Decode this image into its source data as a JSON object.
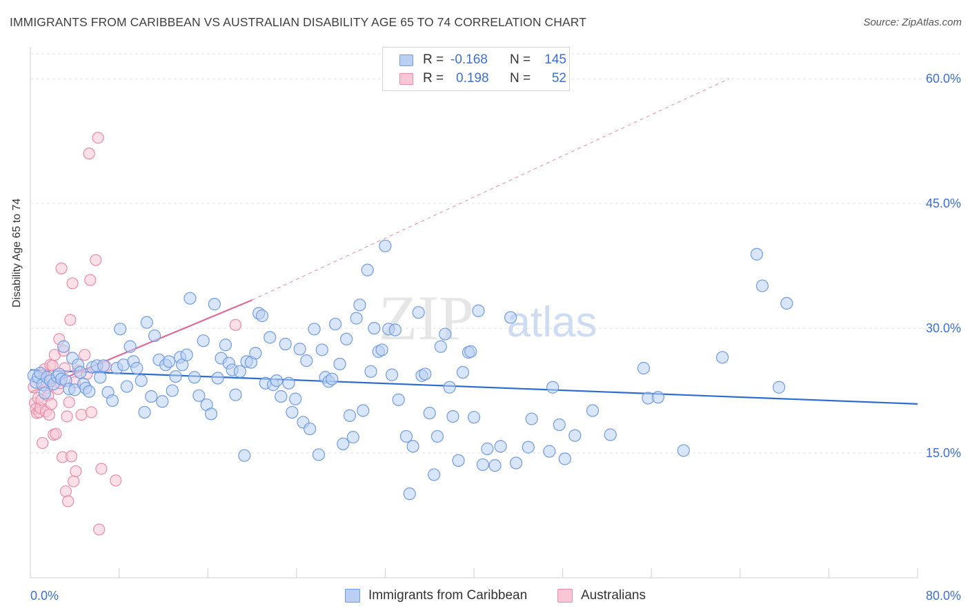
{
  "title": "IMMIGRANTS FROM CARIBBEAN VS AUSTRALIAN DISABILITY AGE 65 TO 74 CORRELATION CHART",
  "source": "Source: ZipAtlas.com",
  "watermark": {
    "zip": "ZIP",
    "atlas": "atlas"
  },
  "colors": {
    "blue_fill": "#b9cff4",
    "blue_stroke": "#6f9be0",
    "blue_line": "#2a6ccf",
    "pink_fill": "#f8c6d5",
    "pink_stroke": "#ea8aa9",
    "pink_line": "#e0699a",
    "axis_text": "#3a6fd8",
    "grid": "#e2e2e2"
  },
  "legend": {
    "rows": [
      {
        "r_label": "R =",
        "r_value": "-0.168",
        "n_label": "N =",
        "n_value": "145"
      },
      {
        "r_label": "R =",
        "r_value": "0.198",
        "n_label": "N =",
        "n_value": "52"
      }
    ]
  },
  "bottom_legend": {
    "series1": "Immigrants from Caribbean",
    "series2": "Australians"
  },
  "chart_data": {
    "type": "scatter",
    "title": "IMMIGRANTS FROM CARIBBEAN VS AUSTRALIAN DISABILITY AGE 65 TO 74 CORRELATION CHART",
    "xlabel": "",
    "ylabel": "Disability Age 65 to 74",
    "xlim": [
      0,
      80
    ],
    "ylim": [
      0,
      63
    ],
    "x_tick_labels": [
      "0.0%",
      "80.0%"
    ],
    "y_ticks": [
      15,
      30,
      45,
      60
    ],
    "y_tick_labels": [
      "15.0%",
      "30.0%",
      "45.0%",
      "60.0%"
    ],
    "grid": true,
    "legend_position": "top-center",
    "series": [
      {
        "name": "Immigrants from Caribbean",
        "color": "#6f9be0",
        "trend": {
          "x": [
            0,
            80
          ],
          "y": [
            25.0,
            20.9
          ],
          "style": "solid"
        },
        "points": [
          [
            0.3,
            24.3
          ],
          [
            0.5,
            23.5
          ],
          [
            0.7,
            24.1
          ],
          [
            0.9,
            24.6
          ],
          [
            1.1,
            23.2
          ],
          [
            1.3,
            22.2
          ],
          [
            1.5,
            24.1
          ],
          [
            1.8,
            23.7
          ],
          [
            2.1,
            23.3
          ],
          [
            2.4,
            24.2
          ],
          [
            2.6,
            24.5
          ],
          [
            2.8,
            23.9
          ],
          [
            3.0,
            27.8
          ],
          [
            3.2,
            23.7
          ],
          [
            3.5,
            22.7
          ],
          [
            3.8,
            26.4
          ],
          [
            4.0,
            22.6
          ],
          [
            4.3,
            25.6
          ],
          [
            4.5,
            24.7
          ],
          [
            4.8,
            23.3
          ],
          [
            5.0,
            22.8
          ],
          [
            5.3,
            22.4
          ],
          [
            5.6,
            25.3
          ],
          [
            6.0,
            25.5
          ],
          [
            6.3,
            24.1
          ],
          [
            6.6,
            25.5
          ],
          [
            7.0,
            22.3
          ],
          [
            7.4,
            21.3
          ],
          [
            7.8,
            25.2
          ],
          [
            8.1,
            29.9
          ],
          [
            8.4,
            25.6
          ],
          [
            8.7,
            23.0
          ],
          [
            9.0,
            27.8
          ],
          [
            9.3,
            26.0
          ],
          [
            9.6,
            25.2
          ],
          [
            10.0,
            23.7
          ],
          [
            10.3,
            19.9
          ],
          [
            10.5,
            30.7
          ],
          [
            10.9,
            21.8
          ],
          [
            11.2,
            29.1
          ],
          [
            11.6,
            26.2
          ],
          [
            11.9,
            21.2
          ],
          [
            12.2,
            25.6
          ],
          [
            12.5,
            26.0
          ],
          [
            12.8,
            22.5
          ],
          [
            13.1,
            24.2
          ],
          [
            13.5,
            26.5
          ],
          [
            13.7,
            25.6
          ],
          [
            14.1,
            26.8
          ],
          [
            14.4,
            33.6
          ],
          [
            14.8,
            24.1
          ],
          [
            15.2,
            21.9
          ],
          [
            15.6,
            28.5
          ],
          [
            15.9,
            20.8
          ],
          [
            16.3,
            19.7
          ],
          [
            16.6,
            32.9
          ],
          [
            16.9,
            24.0
          ],
          [
            17.2,
            26.4
          ],
          [
            17.6,
            28.0
          ],
          [
            17.9,
            25.8
          ],
          [
            18.2,
            25.0
          ],
          [
            18.5,
            22.0
          ],
          [
            18.9,
            24.8
          ],
          [
            19.3,
            14.7
          ],
          [
            19.5,
            26.0
          ],
          [
            19.9,
            25.9
          ],
          [
            20.3,
            27.0
          ],
          [
            20.6,
            31.8
          ],
          [
            20.9,
            31.5
          ],
          [
            21.2,
            23.4
          ],
          [
            21.6,
            28.9
          ],
          [
            21.9,
            23.2
          ],
          [
            22.2,
            23.7
          ],
          [
            22.6,
            21.8
          ],
          [
            23.0,
            28.1
          ],
          [
            23.3,
            23.4
          ],
          [
            23.6,
            19.9
          ],
          [
            23.9,
            21.5
          ],
          [
            24.3,
            27.5
          ],
          [
            24.6,
            18.7
          ],
          [
            24.9,
            26.1
          ],
          [
            25.2,
            17.9
          ],
          [
            25.6,
            29.9
          ],
          [
            26.0,
            14.8
          ],
          [
            26.3,
            27.4
          ],
          [
            26.6,
            24.1
          ],
          [
            26.9,
            23.6
          ],
          [
            27.2,
            23.9
          ],
          [
            27.5,
            30.5
          ],
          [
            27.9,
            25.7
          ],
          [
            28.2,
            16.1
          ],
          [
            28.5,
            28.7
          ],
          [
            28.8,
            19.5
          ],
          [
            29.1,
            16.9
          ],
          [
            29.4,
            31.2
          ],
          [
            29.7,
            32.8
          ],
          [
            30.0,
            20.1
          ],
          [
            30.4,
            37.0
          ],
          [
            30.7,
            24.8
          ],
          [
            31.0,
            30.0
          ],
          [
            31.4,
            27.2
          ],
          [
            31.7,
            27.4
          ],
          [
            32.0,
            39.9
          ],
          [
            32.3,
            29.9
          ],
          [
            32.6,
            24.4
          ],
          [
            32.9,
            29.8
          ],
          [
            33.2,
            21.4
          ],
          [
            33.9,
            17.0
          ],
          [
            34.2,
            10.1
          ],
          [
            34.5,
            15.8
          ],
          [
            35.0,
            31.9
          ],
          [
            35.3,
            24.3
          ],
          [
            35.6,
            24.5
          ],
          [
            36.0,
            19.8
          ],
          [
            36.4,
            12.4
          ],
          [
            36.7,
            17.0
          ],
          [
            37.0,
            27.8
          ],
          [
            37.4,
            29.3
          ],
          [
            37.8,
            22.9
          ],
          [
            38.1,
            19.4
          ],
          [
            38.6,
            14.1
          ],
          [
            39.0,
            24.7
          ],
          [
            39.5,
            27.1
          ],
          [
            39.7,
            27.2
          ],
          [
            40.0,
            19.3
          ],
          [
            40.4,
            32.1
          ],
          [
            40.8,
            13.6
          ],
          [
            41.2,
            15.5
          ],
          [
            41.9,
            13.5
          ],
          [
            42.4,
            15.8
          ],
          [
            43.3,
            31.3
          ],
          [
            43.8,
            13.8
          ],
          [
            44.9,
            15.7
          ],
          [
            45.2,
            19.1
          ],
          [
            46.8,
            15.2
          ],
          [
            47.1,
            22.9
          ],
          [
            47.7,
            18.4
          ],
          [
            48.2,
            14.3
          ],
          [
            49.1,
            17.1
          ],
          [
            50.7,
            20.1
          ],
          [
            52.3,
            17.2
          ],
          [
            55.3,
            25.2
          ],
          [
            55.7,
            21.6
          ],
          [
            56.6,
            21.7
          ],
          [
            58.9,
            15.3
          ],
          [
            62.4,
            26.5
          ],
          [
            65.5,
            38.9
          ],
          [
            66.0,
            35.1
          ],
          [
            67.5,
            22.9
          ],
          [
            68.2,
            33.0
          ]
        ]
      },
      {
        "name": "Australians",
        "color": "#ea8aa9",
        "trend": {
          "x": [
            0,
            20
          ],
          "y": [
            22.3,
            33.4
          ],
          "style": "solid",
          "extension_x": [
            20,
            63
          ],
          "extension_y": [
            33.4,
            60.0
          ],
          "extension_style": "dashed"
        },
        "points": [
          [
            0.3,
            22.9
          ],
          [
            0.4,
            21.0
          ],
          [
            0.5,
            20.3
          ],
          [
            0.6,
            19.8
          ],
          [
            0.7,
            21.6
          ],
          [
            0.8,
            19.9
          ],
          [
            0.9,
            20.4
          ],
          [
            1.0,
            21.4
          ],
          [
            1.1,
            16.2
          ],
          [
            1.2,
            24.4
          ],
          [
            1.3,
            25.1
          ],
          [
            1.4,
            20.0
          ],
          [
            1.5,
            22.8
          ],
          [
            1.6,
            21.9
          ],
          [
            1.7,
            19.6
          ],
          [
            1.8,
            25.6
          ],
          [
            1.9,
            20.9
          ],
          [
            2.0,
            25.5
          ],
          [
            2.1,
            17.2
          ],
          [
            2.2,
            26.8
          ],
          [
            2.3,
            17.3
          ],
          [
            2.5,
            22.7
          ],
          [
            2.6,
            28.7
          ],
          [
            2.7,
            23.4
          ],
          [
            2.8,
            37.2
          ],
          [
            2.9,
            14.5
          ],
          [
            3.0,
            27.3
          ],
          [
            3.1,
            25.2
          ],
          [
            3.2,
            10.4
          ],
          [
            3.3,
            19.4
          ],
          [
            3.4,
            9.2
          ],
          [
            3.5,
            21.1
          ],
          [
            3.6,
            31.0
          ],
          [
            3.7,
            14.6
          ],
          [
            3.8,
            35.4
          ],
          [
            3.9,
            11.6
          ],
          [
            4.0,
            23.5
          ],
          [
            4.1,
            12.8
          ],
          [
            4.3,
            24.9
          ],
          [
            4.6,
            19.6
          ],
          [
            4.9,
            26.8
          ],
          [
            5.1,
            24.5
          ],
          [
            5.3,
            51.0
          ],
          [
            5.4,
            35.8
          ],
          [
            5.5,
            19.9
          ],
          [
            5.9,
            38.2
          ],
          [
            6.1,
            52.9
          ],
          [
            6.2,
            5.8
          ],
          [
            6.4,
            13.1
          ],
          [
            6.8,
            25.4
          ],
          [
            7.7,
            11.7
          ],
          [
            18.5,
            30.4
          ]
        ]
      }
    ]
  }
}
